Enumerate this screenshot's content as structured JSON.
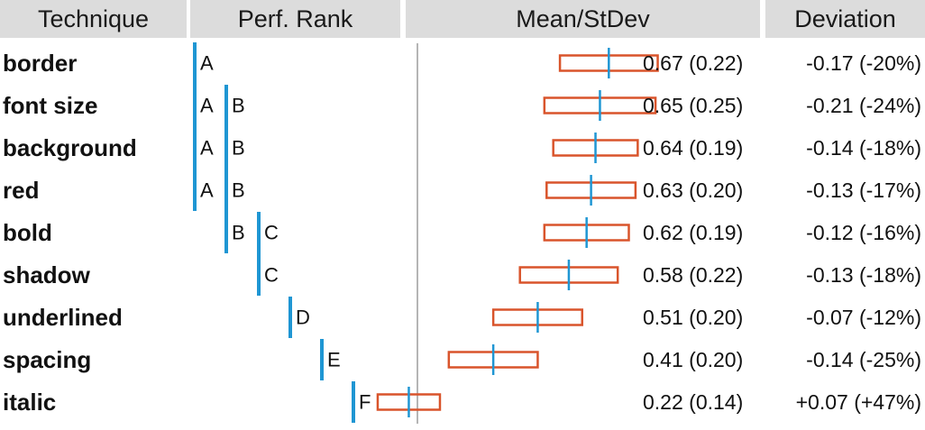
{
  "headers": {
    "technique": "Technique",
    "rank": "Perf. Rank",
    "mean": "Mean/StDev",
    "deviation": "Deviation"
  },
  "chart_data": {
    "type": "table",
    "columns": [
      "Technique",
      "Perf. Rank",
      "Mean/StDev",
      "Deviation"
    ],
    "rows": [
      {
        "technique": "border",
        "groups": [
          "A"
        ],
        "mean": 0.67,
        "sd": 0.22,
        "mean_text": "0.67 (0.22)",
        "dev_text": "-0.17 (-20%)"
      },
      {
        "technique": "font size",
        "groups": [
          "A",
          "B"
        ],
        "mean": 0.65,
        "sd": 0.25,
        "mean_text": "0.65 (0.25)",
        "dev_text": "-0.21 (-24%)"
      },
      {
        "technique": "background",
        "groups": [
          "A",
          "B"
        ],
        "mean": 0.64,
        "sd": 0.19,
        "mean_text": "0.64 (0.19)",
        "dev_text": "-0.14 (-18%)"
      },
      {
        "technique": "red",
        "groups": [
          "A",
          "B"
        ],
        "mean": 0.63,
        "sd": 0.2,
        "mean_text": "0.63 (0.20)",
        "dev_text": "-0.13 (-17%)"
      },
      {
        "technique": "bold",
        "groups": [
          "B",
          "C"
        ],
        "mean": 0.62,
        "sd": 0.19,
        "mean_text": "0.62 (0.19)",
        "dev_text": "-0.12 (-16%)"
      },
      {
        "technique": "shadow",
        "groups": [
          "C"
        ],
        "mean": 0.58,
        "sd": 0.22,
        "mean_text": "0.58 (0.22)",
        "dev_text": "-0.13 (-18%)"
      },
      {
        "technique": "underlined",
        "groups": [
          "D"
        ],
        "mean": 0.51,
        "sd": 0.2,
        "mean_text": "0.51 (0.20)",
        "dev_text": "-0.07 (-12%)"
      },
      {
        "technique": "spacing",
        "groups": [
          "E"
        ],
        "mean": 0.41,
        "sd": 0.2,
        "mean_text": "0.41 (0.20)",
        "dev_text": "-0.14 (-25%)"
      },
      {
        "technique": "italic",
        "groups": [
          "F"
        ],
        "mean": 0.22,
        "sd": 0.14,
        "mean_text": "0.22 (0.14)",
        "dev_text": "+0.07 (+47%)"
      }
    ],
    "rank_groups": [
      "A",
      "B",
      "C",
      "D",
      "E",
      "F"
    ],
    "colors": {
      "rank_bar": "#1f96d3",
      "sd_box": "#d9542b",
      "mean_tick": "#1f96d3",
      "divider": "#b5b5b5",
      "header_bg": "#dcdcdc"
    }
  }
}
